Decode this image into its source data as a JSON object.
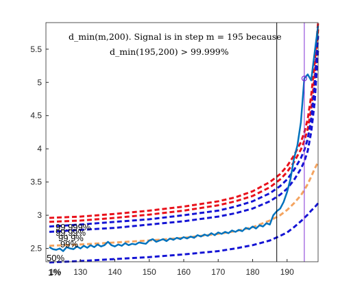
{
  "chart_data": {
    "type": "line",
    "xlim": [
      120,
      199
    ],
    "ylim": [
      2.3,
      5.9
    ],
    "xticks": [
      130,
      140,
      150,
      160,
      170,
      180,
      190
    ],
    "yticks": [
      2.5,
      3,
      3.5,
      4,
      4.5,
      5,
      5.5
    ],
    "xtick_labels": [
      "130",
      "140",
      "150",
      "160",
      "170",
      "180",
      "190"
    ],
    "ytick_labels": [
      "2.5",
      "3",
      "3.5",
      "4",
      "4.5",
      "5",
      "5.5"
    ],
    "extra_xtick_label": "1%",
    "annotation": {
      "line1": "d_min(m,200). Signal is in step m = 195 because",
      "line2": "d_min(195,200) > 99.999%"
    },
    "percentile_labels": [
      "99.999%",
      "99.99%",
      "99.9%",
      "99%",
      "50%",
      "1%"
    ],
    "vertical_markers": [
      {
        "x": 187,
        "color": "#000000"
      },
      {
        "x": 195,
        "color": "#7e2fd4"
      }
    ],
    "marker_point": {
      "x": 195,
      "y": 5.06,
      "color": "#7e2fd4"
    },
    "series": [
      {
        "id": "p99999",
        "color": "#e8111b",
        "dash": true,
        "values": [
          [
            121,
            2.96
          ],
          [
            130,
            2.98
          ],
          [
            140,
            3.02
          ],
          [
            150,
            3.07
          ],
          [
            160,
            3.13
          ],
          [
            170,
            3.21
          ],
          [
            175,
            3.27
          ],
          [
            180,
            3.36
          ],
          [
            185,
            3.5
          ],
          [
            188,
            3.62
          ],
          [
            190,
            3.74
          ],
          [
            192,
            3.9
          ],
          [
            194,
            4.1
          ],
          [
            195,
            4.25
          ],
          [
            196,
            4.45
          ],
          [
            197,
            4.8
          ],
          [
            198,
            5.3
          ],
          [
            199,
            5.9
          ]
        ]
      },
      {
        "id": "p9999",
        "color": "#e8111b",
        "dash": true,
        "values": [
          [
            121,
            2.9
          ],
          [
            130,
            2.92
          ],
          [
            140,
            2.96
          ],
          [
            150,
            3.01
          ],
          [
            160,
            3.07
          ],
          [
            170,
            3.15
          ],
          [
            175,
            3.21
          ],
          [
            180,
            3.29
          ],
          [
            185,
            3.42
          ],
          [
            188,
            3.54
          ],
          [
            190,
            3.65
          ],
          [
            192,
            3.8
          ],
          [
            194,
            3.99
          ],
          [
            195,
            4.12
          ],
          [
            196,
            4.3
          ],
          [
            197,
            4.6
          ],
          [
            198,
            5.1
          ],
          [
            199,
            5.8
          ]
        ]
      },
      {
        "id": "p999",
        "color": "#1414d4",
        "dash": true,
        "values": [
          [
            121,
            2.83
          ],
          [
            130,
            2.86
          ],
          [
            140,
            2.9
          ],
          [
            150,
            2.94
          ],
          [
            160,
            3.0
          ],
          [
            170,
            3.07
          ],
          [
            175,
            3.13
          ],
          [
            180,
            3.21
          ],
          [
            185,
            3.33
          ],
          [
            188,
            3.44
          ],
          [
            190,
            3.54
          ],
          [
            192,
            3.68
          ],
          [
            194,
            3.86
          ],
          [
            195,
            3.98
          ],
          [
            196,
            4.15
          ],
          [
            197,
            4.45
          ],
          [
            198,
            4.95
          ],
          [
            199,
            5.7
          ]
        ]
      },
      {
        "id": "p99",
        "color": "#1414d4",
        "dash": true,
        "values": [
          [
            121,
            2.75
          ],
          [
            130,
            2.78
          ],
          [
            140,
            2.81
          ],
          [
            150,
            2.86
          ],
          [
            160,
            2.91
          ],
          [
            170,
            2.98
          ],
          [
            175,
            3.03
          ],
          [
            180,
            3.1
          ],
          [
            185,
            3.21
          ],
          [
            188,
            3.31
          ],
          [
            190,
            3.4
          ],
          [
            192,
            3.53
          ],
          [
            194,
            3.7
          ],
          [
            195,
            3.81
          ],
          [
            196,
            3.97
          ],
          [
            197,
            4.25
          ],
          [
            198,
            4.7
          ],
          [
            199,
            5.5
          ]
        ]
      },
      {
        "id": "p50",
        "color": "#f4a460",
        "dash": true,
        "values": [
          [
            121,
            2.54
          ],
          [
            130,
            2.56
          ],
          [
            140,
            2.59
          ],
          [
            150,
            2.62
          ],
          [
            160,
            2.66
          ],
          [
            170,
            2.72
          ],
          [
            175,
            2.76
          ],
          [
            180,
            2.82
          ],
          [
            185,
            2.92
          ],
          [
            188,
            3.0
          ],
          [
            190,
            3.08
          ],
          [
            192,
            3.18
          ],
          [
            194,
            3.3
          ],
          [
            195,
            3.38
          ],
          [
            196,
            3.47
          ],
          [
            197,
            3.58
          ],
          [
            198,
            3.7
          ],
          [
            199,
            3.8
          ]
        ]
      },
      {
        "id": "p1",
        "color": "#1414d4",
        "dash": true,
        "values": [
          [
            121,
            2.29
          ],
          [
            130,
            2.31
          ],
          [
            140,
            2.34
          ],
          [
            150,
            2.37
          ],
          [
            160,
            2.41
          ],
          [
            170,
            2.46
          ],
          [
            175,
            2.5
          ],
          [
            180,
            2.55
          ],
          [
            185,
            2.62
          ],
          [
            188,
            2.69
          ],
          [
            190,
            2.74
          ],
          [
            192,
            2.82
          ],
          [
            194,
            2.91
          ],
          [
            195,
            2.96
          ],
          [
            196,
            3.01
          ],
          [
            197,
            3.07
          ],
          [
            198,
            3.12
          ],
          [
            199,
            3.18
          ]
        ]
      },
      {
        "id": "signal",
        "color": "#0072bd",
        "dash": false,
        "values": [
          [
            121,
            2.52
          ],
          [
            122,
            2.49
          ],
          [
            123,
            2.48
          ],
          [
            124,
            2.5
          ],
          [
            125,
            2.46
          ],
          [
            126,
            2.52
          ],
          [
            127,
            2.5
          ],
          [
            128,
            2.49
          ],
          [
            129,
            2.53
          ],
          [
            130,
            2.5
          ],
          [
            131,
            2.54
          ],
          [
            132,
            2.51
          ],
          [
            133,
            2.55
          ],
          [
            134,
            2.52
          ],
          [
            135,
            2.56
          ],
          [
            136,
            2.53
          ],
          [
            137,
            2.55
          ],
          [
            138,
            2.6
          ],
          [
            139,
            2.55
          ],
          [
            140,
            2.53
          ],
          [
            141,
            2.56
          ],
          [
            142,
            2.54
          ],
          [
            143,
            2.58
          ],
          [
            144,
            2.55
          ],
          [
            145,
            2.57
          ],
          [
            146,
            2.56
          ],
          [
            147,
            2.59
          ],
          [
            148,
            2.58
          ],
          [
            149,
            2.57
          ],
          [
            150,
            2.62
          ],
          [
            151,
            2.64
          ],
          [
            152,
            2.6
          ],
          [
            153,
            2.62
          ],
          [
            154,
            2.64
          ],
          [
            155,
            2.61
          ],
          [
            156,
            2.65
          ],
          [
            157,
            2.63
          ],
          [
            158,
            2.66
          ],
          [
            159,
            2.64
          ],
          [
            160,
            2.67
          ],
          [
            161,
            2.65
          ],
          [
            162,
            2.68
          ],
          [
            163,
            2.66
          ],
          [
            164,
            2.7
          ],
          [
            165,
            2.68
          ],
          [
            166,
            2.71
          ],
          [
            167,
            2.69
          ],
          [
            168,
            2.73
          ],
          [
            169,
            2.7
          ],
          [
            170,
            2.74
          ],
          [
            171,
            2.72
          ],
          [
            172,
            2.75
          ],
          [
            173,
            2.73
          ],
          [
            174,
            2.77
          ],
          [
            175,
            2.75
          ],
          [
            176,
            2.78
          ],
          [
            177,
            2.76
          ],
          [
            178,
            2.81
          ],
          [
            179,
            2.79
          ],
          [
            180,
            2.83
          ],
          [
            181,
            2.8
          ],
          [
            182,
            2.85
          ],
          [
            183,
            2.83
          ],
          [
            184,
            2.88
          ],
          [
            185,
            2.86
          ],
          [
            186,
            3.0
          ],
          [
            187,
            3.06
          ],
          [
            188,
            3.1
          ],
          [
            189,
            3.2
          ],
          [
            190,
            3.35
          ],
          [
            191,
            3.55
          ],
          [
            192,
            3.85
          ],
          [
            193,
            4.05
          ],
          [
            194,
            4.4
          ],
          [
            195,
            5.06
          ],
          [
            196,
            5.12
          ],
          [
            197,
            5.03
          ],
          [
            198,
            5.45
          ],
          [
            199,
            5.85
          ]
        ]
      }
    ]
  }
}
